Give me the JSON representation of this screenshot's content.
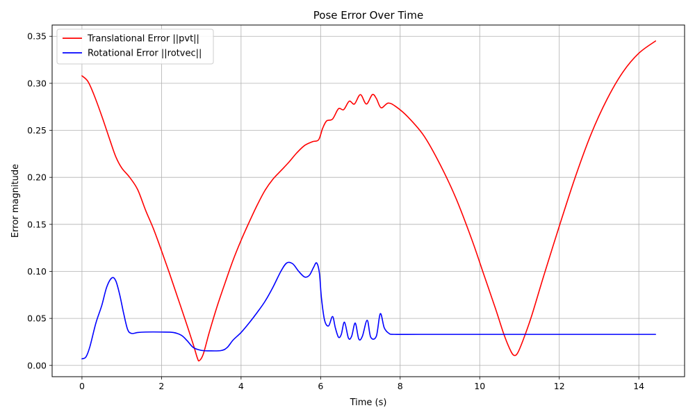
{
  "chart_data": {
    "type": "line",
    "title": "Pose Error Over Time",
    "xlabel": "Time (s)",
    "ylabel": "Error magnitude",
    "xlim": [
      -0.75,
      15.15
    ],
    "ylim": [
      -0.012,
      0.362
    ],
    "xticks": [
      0,
      2,
      4,
      6,
      8,
      10,
      12,
      14
    ],
    "xtick_labels": [
      "0",
      "2",
      "4",
      "6",
      "8",
      "10",
      "12",
      "14"
    ],
    "yticks": [
      0.0,
      0.05,
      0.1,
      0.15,
      0.2,
      0.25,
      0.3,
      0.35
    ],
    "ytick_labels": [
      "0.00",
      "0.05",
      "0.10",
      "0.15",
      "0.20",
      "0.25",
      "0.30",
      "0.35"
    ],
    "grid": true,
    "legend_position": "top-left",
    "series": [
      {
        "name": "Translational Error ||pvt||",
        "color": "#ff0000",
        "points": [
          [
            0.0,
            0.308
          ],
          [
            0.15,
            0.302
          ],
          [
            0.3,
            0.288
          ],
          [
            0.5,
            0.265
          ],
          [
            0.7,
            0.24
          ],
          [
            0.85,
            0.222
          ],
          [
            1.0,
            0.21
          ],
          [
            1.2,
            0.2
          ],
          [
            1.4,
            0.187
          ],
          [
            1.6,
            0.165
          ],
          [
            1.8,
            0.145
          ],
          [
            2.0,
            0.122
          ],
          [
            2.2,
            0.098
          ],
          [
            2.4,
            0.073
          ],
          [
            2.6,
            0.048
          ],
          [
            2.8,
            0.022
          ],
          [
            2.9,
            0.008
          ],
          [
            2.95,
            0.005
          ],
          [
            3.05,
            0.012
          ],
          [
            3.2,
            0.035
          ],
          [
            3.4,
            0.063
          ],
          [
            3.6,
            0.088
          ],
          [
            3.8,
            0.112
          ],
          [
            4.0,
            0.133
          ],
          [
            4.2,
            0.152
          ],
          [
            4.4,
            0.17
          ],
          [
            4.6,
            0.186
          ],
          [
            4.8,
            0.198
          ],
          [
            5.0,
            0.207
          ],
          [
            5.2,
            0.216
          ],
          [
            5.4,
            0.226
          ],
          [
            5.6,
            0.234
          ],
          [
            5.8,
            0.238
          ],
          [
            5.95,
            0.24
          ],
          [
            6.05,
            0.252
          ],
          [
            6.15,
            0.26
          ],
          [
            6.3,
            0.262
          ],
          [
            6.45,
            0.273
          ],
          [
            6.58,
            0.272
          ],
          [
            6.72,
            0.281
          ],
          [
            6.85,
            0.278
          ],
          [
            7.0,
            0.288
          ],
          [
            7.15,
            0.278
          ],
          [
            7.3,
            0.288
          ],
          [
            7.4,
            0.284
          ],
          [
            7.52,
            0.274
          ],
          [
            7.7,
            0.279
          ],
          [
            7.9,
            0.275
          ],
          [
            8.2,
            0.264
          ],
          [
            8.6,
            0.244
          ],
          [
            9.0,
            0.214
          ],
          [
            9.4,
            0.178
          ],
          [
            9.8,
            0.134
          ],
          [
            10.1,
            0.097
          ],
          [
            10.4,
            0.06
          ],
          [
            10.6,
            0.034
          ],
          [
            10.75,
            0.018
          ],
          [
            10.85,
            0.011
          ],
          [
            10.95,
            0.013
          ],
          [
            11.1,
            0.028
          ],
          [
            11.3,
            0.052
          ],
          [
            11.6,
            0.094
          ],
          [
            12.0,
            0.148
          ],
          [
            12.4,
            0.2
          ],
          [
            12.8,
            0.246
          ],
          [
            13.2,
            0.283
          ],
          [
            13.6,
            0.312
          ],
          [
            14.0,
            0.332
          ],
          [
            14.42,
            0.345
          ]
        ]
      },
      {
        "name": "Rotational Error ||rotvec||",
        "color": "#0000ff",
        "points": [
          [
            0.0,
            0.007
          ],
          [
            0.1,
            0.009
          ],
          [
            0.2,
            0.02
          ],
          [
            0.35,
            0.045
          ],
          [
            0.5,
            0.064
          ],
          [
            0.62,
            0.083
          ],
          [
            0.75,
            0.093
          ],
          [
            0.85,
            0.09
          ],
          [
            0.95,
            0.075
          ],
          [
            1.05,
            0.055
          ],
          [
            1.15,
            0.038
          ],
          [
            1.25,
            0.034
          ],
          [
            1.4,
            0.035
          ],
          [
            1.6,
            0.0355
          ],
          [
            2.0,
            0.0355
          ],
          [
            2.3,
            0.035
          ],
          [
            2.5,
            0.032
          ],
          [
            2.65,
            0.026
          ],
          [
            2.8,
            0.019
          ],
          [
            3.0,
            0.016
          ],
          [
            3.2,
            0.0155
          ],
          [
            3.5,
            0.0158
          ],
          [
            3.65,
            0.019
          ],
          [
            3.8,
            0.027
          ],
          [
            4.0,
            0.035
          ],
          [
            4.2,
            0.045
          ],
          [
            4.4,
            0.056
          ],
          [
            4.6,
            0.068
          ],
          [
            4.8,
            0.083
          ],
          [
            5.0,
            0.1
          ],
          [
            5.15,
            0.109
          ],
          [
            5.3,
            0.108
          ],
          [
            5.45,
            0.1
          ],
          [
            5.6,
            0.094
          ],
          [
            5.72,
            0.096
          ],
          [
            5.82,
            0.104
          ],
          [
            5.9,
            0.109
          ],
          [
            5.97,
            0.098
          ],
          [
            6.02,
            0.072
          ],
          [
            6.1,
            0.048
          ],
          [
            6.2,
            0.042
          ],
          [
            6.3,
            0.052
          ],
          [
            6.37,
            0.04
          ],
          [
            6.45,
            0.03
          ],
          [
            6.52,
            0.033
          ],
          [
            6.6,
            0.046
          ],
          [
            6.7,
            0.029
          ],
          [
            6.78,
            0.031
          ],
          [
            6.87,
            0.045
          ],
          [
            6.96,
            0.028
          ],
          [
            7.05,
            0.031
          ],
          [
            7.17,
            0.048
          ],
          [
            7.26,
            0.03
          ],
          [
            7.4,
            0.031
          ],
          [
            7.5,
            0.055
          ],
          [
            7.6,
            0.04
          ],
          [
            7.72,
            0.034
          ],
          [
            7.85,
            0.033
          ],
          [
            8.5,
            0.033
          ],
          [
            10.0,
            0.033
          ],
          [
            12.0,
            0.033
          ],
          [
            14.42,
            0.033
          ]
        ]
      }
    ]
  }
}
